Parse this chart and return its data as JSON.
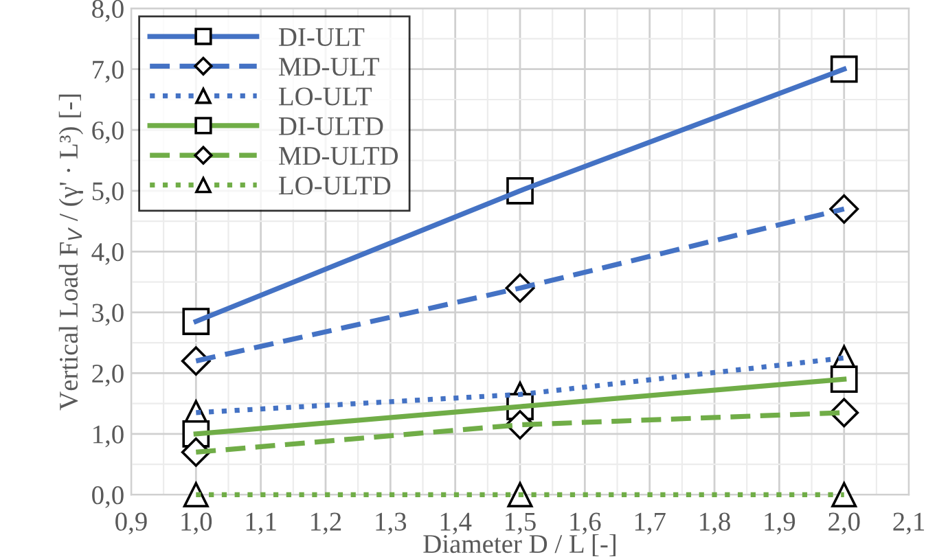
{
  "chart_data": {
    "type": "line",
    "xlabel": "Diameter D / L [-]",
    "ylabel": "Vertical Load F$_{V}$ / (γ' · L³) [-]",
    "x": [
      1.0,
      1.5,
      2.0
    ],
    "series": [
      {
        "name": "DI-ULT",
        "color": "#4472c4",
        "line_style": "solid",
        "marker": "square",
        "values": [
          2.85,
          5.0,
          7.0
        ]
      },
      {
        "name": "MD-ULT",
        "color": "#4472c4",
        "line_style": "dashed",
        "marker": "diamond",
        "values": [
          2.2,
          3.4,
          4.7
        ]
      },
      {
        "name": "LO-ULT",
        "color": "#4472c4",
        "line_style": "dotted",
        "marker": "triangle",
        "values": [
          1.35,
          1.65,
          2.25
        ]
      },
      {
        "name": "DI-ULTD",
        "color": "#70ad47",
        "line_style": "solid",
        "marker": "square",
        "values": [
          1.0,
          1.45,
          1.9
        ]
      },
      {
        "name": "MD-ULTD",
        "color": "#70ad47",
        "line_style": "dashed",
        "marker": "diamond",
        "values": [
          0.7,
          1.15,
          1.35
        ]
      },
      {
        "name": "LO-ULTD",
        "color": "#70ad47",
        "line_style": "dotted",
        "marker": "triangle",
        "values": [
          0,
          0,
          0
        ]
      }
    ],
    "xlim": [
      0.9,
      2.1
    ],
    "xticks": [
      {
        "value": 0.9,
        "label": "0,9"
      },
      {
        "value": 1.0,
        "label": "1,0"
      },
      {
        "value": 1.1,
        "label": "1,1"
      },
      {
        "value": 1.2,
        "label": "1,2"
      },
      {
        "value": 1.3,
        "label": "1,3"
      },
      {
        "value": 1.4,
        "label": "1,4"
      },
      {
        "value": 1.5,
        "label": "1,5"
      },
      {
        "value": 1.6,
        "label": "1,6"
      },
      {
        "value": 1.7,
        "label": "1,7"
      },
      {
        "value": 1.8,
        "label": "1,8"
      },
      {
        "value": 1.9,
        "label": "1,9"
      },
      {
        "value": 2.0,
        "label": "2,0"
      },
      {
        "value": 2.1,
        "label": "2,1"
      }
    ],
    "ylim": [
      0,
      8
    ],
    "yticks": [
      {
        "value": 0,
        "label": "0,0"
      },
      {
        "value": 1,
        "label": "1,0"
      },
      {
        "value": 2,
        "label": "2,0"
      },
      {
        "value": 3,
        "label": "3,0"
      },
      {
        "value": 4,
        "label": "4,0"
      },
      {
        "value": 5,
        "label": "5,0"
      },
      {
        "value": 6,
        "label": "6,0"
      },
      {
        "value": 7,
        "label": "7,0"
      },
      {
        "value": 8,
        "label": "8,0"
      }
    ],
    "grid": true,
    "legend": "top left"
  }
}
